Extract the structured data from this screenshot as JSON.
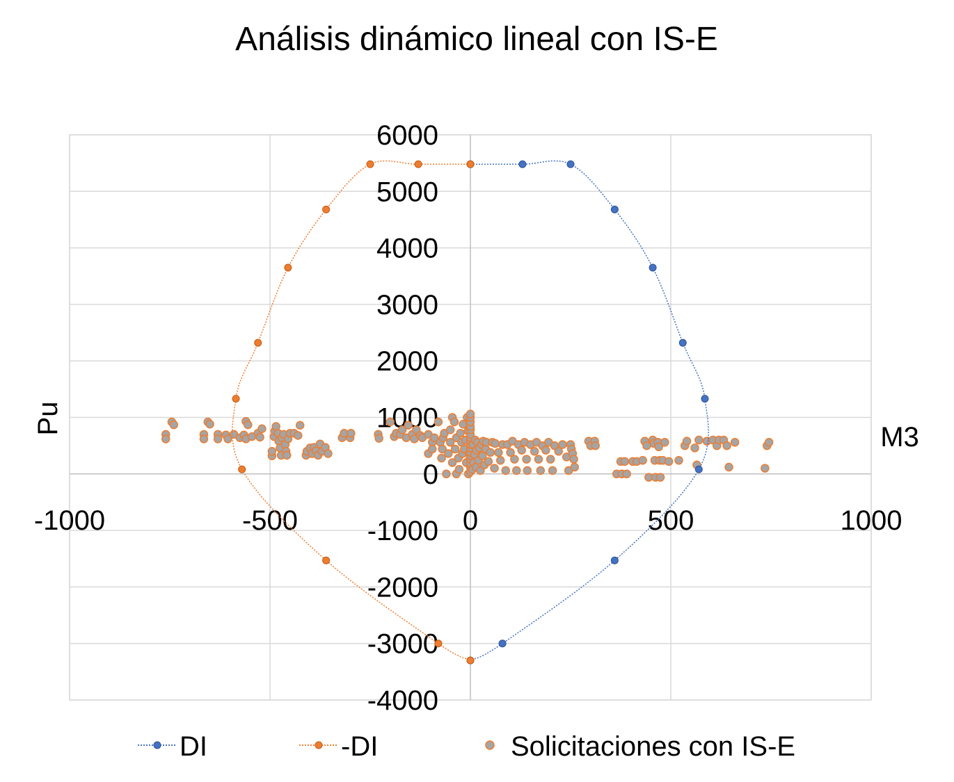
{
  "chart_data": {
    "type": "scatter",
    "title": "Análisis dinámico lineal con IS-E",
    "xlabel": "M3",
    "ylabel": "Pu",
    "xlim": [
      -1000,
      1000
    ],
    "ylim": [
      -4000,
      6000
    ],
    "x_ticks": [
      "-1000",
      "-500",
      "0",
      "500",
      "1000"
    ],
    "y_ticks": [
      "-4000",
      "-3000",
      "-2000",
      "-1000",
      "0",
      "1000",
      "2000",
      "3000",
      "4000",
      "5000",
      "6000"
    ],
    "grid": "on",
    "legend": "bottom",
    "series": [
      {
        "name": "DI",
        "kind": "line-markers",
        "color": "#4472C4",
        "points": [
          [
            0,
            5480
          ],
          [
            130,
            5480
          ],
          [
            250,
            5480
          ],
          [
            360,
            4680
          ],
          [
            455,
            3650
          ],
          [
            530,
            2320
          ],
          [
            585,
            1330
          ],
          [
            570,
            80
          ],
          [
            360,
            -1530
          ],
          [
            80,
            -3000
          ],
          [
            0,
            -3300
          ]
        ]
      },
      {
        "name": "-DI",
        "kind": "line-markers",
        "color": "#ED7D31",
        "points": [
          [
            0,
            5480
          ],
          [
            -130,
            5480
          ],
          [
            -250,
            5480
          ],
          [
            -360,
            4680
          ],
          [
            -455,
            3650
          ],
          [
            -530,
            2320
          ],
          [
            -585,
            1330
          ],
          [
            -570,
            80
          ],
          [
            -360,
            -1530
          ],
          [
            -80,
            -3000
          ],
          [
            0,
            -3300
          ]
        ]
      },
      {
        "name": "Solicitaciones con IS-E",
        "kind": "markers",
        "color": "#A5A5A5",
        "edge_color": "#ED7D31",
        "points": [
          [
            -760,
            700
          ],
          [
            -760,
            620
          ],
          [
            -745,
            920
          ],
          [
            -740,
            870
          ],
          [
            -665,
            700
          ],
          [
            -665,
            620
          ],
          [
            -655,
            920
          ],
          [
            -650,
            880
          ],
          [
            -630,
            700
          ],
          [
            -630,
            620
          ],
          [
            -610,
            690
          ],
          [
            -605,
            620
          ],
          [
            -590,
            700
          ],
          [
            -575,
            640
          ],
          [
            -565,
            690
          ],
          [
            -560,
            620
          ],
          [
            -560,
            930
          ],
          [
            -555,
            870
          ],
          [
            -545,
            660
          ],
          [
            -530,
            720
          ],
          [
            -525,
            650
          ],
          [
            -520,
            800
          ],
          [
            -495,
            320
          ],
          [
            -495,
            400
          ],
          [
            -490,
            660
          ],
          [
            -488,
            760
          ],
          [
            -485,
            840
          ],
          [
            -480,
            720
          ],
          [
            -478,
            580
          ],
          [
            -475,
            460
          ],
          [
            -472,
            330
          ],
          [
            -470,
            640
          ],
          [
            -466,
            700
          ],
          [
            -462,
            520
          ],
          [
            -460,
            400
          ],
          [
            -458,
            330
          ],
          [
            -455,
            620
          ],
          [
            -450,
            720
          ],
          [
            -440,
            720
          ],
          [
            -430,
            680
          ],
          [
            -425,
            860
          ],
          [
            -410,
            330
          ],
          [
            -408,
            400
          ],
          [
            -400,
            460
          ],
          [
            -395,
            360
          ],
          [
            -390,
            470
          ],
          [
            -385,
            410
          ],
          [
            -380,
            330
          ],
          [
            -375,
            530
          ],
          [
            -370,
            400
          ],
          [
            -362,
            470
          ],
          [
            -355,
            360
          ],
          [
            -320,
            640
          ],
          [
            -315,
            720
          ],
          [
            -300,
            640
          ],
          [
            -298,
            720
          ],
          [
            -230,
            700
          ],
          [
            -228,
            630
          ],
          [
            -200,
            920
          ],
          [
            -190,
            660
          ],
          [
            -185,
            720
          ],
          [
            -175,
            700
          ],
          [
            -170,
            780
          ],
          [
            -160,
            640
          ],
          [
            -155,
            860
          ],
          [
            -145,
            700
          ],
          [
            -140,
            620
          ],
          [
            -135,
            780
          ],
          [
            -125,
            680
          ],
          [
            -120,
            640
          ],
          [
            -105,
            360
          ],
          [
            -105,
            700
          ],
          [
            -95,
            560
          ],
          [
            -95,
            440
          ],
          [
            -90,
            640
          ],
          [
            -80,
            920
          ],
          [
            -75,
            560
          ],
          [
            -72,
            280
          ],
          [
            -70,
            440
          ],
          [
            -68,
            640
          ],
          [
            -65,
            720
          ],
          [
            -60,
            0
          ],
          [
            -55,
            360
          ],
          [
            -50,
            560
          ],
          [
            -50,
            780
          ],
          [
            -45,
            200
          ],
          [
            -45,
            1000
          ],
          [
            -40,
            920
          ],
          [
            -38,
            440
          ],
          [
            -35,
            640
          ],
          [
            -35,
            0
          ],
          [
            -30,
            280
          ],
          [
            -28,
            80
          ],
          [
            -25,
            720
          ],
          [
            -22,
            560
          ],
          [
            -20,
            360
          ],
          [
            -18,
            880
          ],
          [
            -15,
            440
          ],
          [
            -12,
            600
          ],
          [
            -10,
            200
          ],
          [
            -8,
            1000
          ],
          [
            -6,
            760
          ],
          [
            -5,
            0
          ],
          [
            -3,
            360
          ],
          [
            -2,
            920
          ],
          [
            -1,
            280
          ],
          [
            0,
            40
          ],
          [
            0,
            120
          ],
          [
            0,
            180
          ],
          [
            0,
            260
          ],
          [
            0,
            320
          ],
          [
            0,
            380
          ],
          [
            0,
            460
          ],
          [
            0,
            520
          ],
          [
            0,
            580
          ],
          [
            0,
            640
          ],
          [
            0,
            700
          ],
          [
            0,
            780
          ],
          [
            0,
            840
          ],
          [
            0,
            920
          ],
          [
            0,
            1000
          ],
          [
            0,
            1060
          ],
          [
            5,
            80
          ],
          [
            6,
            520
          ],
          [
            8,
            200
          ],
          [
            10,
            340
          ],
          [
            12,
            600
          ],
          [
            14,
            120
          ],
          [
            15,
            420
          ],
          [
            18,
            560
          ],
          [
            20,
            240
          ],
          [
            22,
            460
          ],
          [
            25,
            60
          ],
          [
            28,
            520
          ],
          [
            30,
            320
          ],
          [
            32,
            580
          ],
          [
            35,
            160
          ],
          [
            38,
            440
          ],
          [
            40,
            560
          ],
          [
            45,
            220
          ],
          [
            50,
            380
          ],
          [
            55,
            560
          ],
          [
            60,
            100
          ],
          [
            62,
            540
          ],
          [
            70,
            380
          ],
          [
            75,
            240
          ],
          [
            80,
            520
          ],
          [
            88,
            60
          ],
          [
            92,
            520
          ],
          [
            100,
            380
          ],
          [
            105,
            580
          ],
          [
            110,
            260
          ],
          [
            115,
            60
          ],
          [
            120,
            520
          ],
          [
            128,
            420
          ],
          [
            135,
            560
          ],
          [
            140,
            260
          ],
          [
            142,
            60
          ],
          [
            150,
            520
          ],
          [
            160,
            400
          ],
          [
            165,
            560
          ],
          [
            170,
            260
          ],
          [
            175,
            60
          ],
          [
            180,
            500
          ],
          [
            188,
            420
          ],
          [
            195,
            560
          ],
          [
            200,
            260
          ],
          [
            205,
            60
          ],
          [
            210,
            500
          ],
          [
            220,
            400
          ],
          [
            230,
            520
          ],
          [
            240,
            300
          ],
          [
            245,
            60
          ],
          [
            250,
            520
          ],
          [
            252,
            440
          ],
          [
            255,
            360
          ],
          [
            258,
            260
          ],
          [
            260,
            120
          ],
          [
            295,
            580
          ],
          [
            300,
            500
          ],
          [
            310,
            580
          ],
          [
            312,
            500
          ],
          [
            365,
            0
          ],
          [
            378,
            0
          ],
          [
            390,
            0
          ],
          [
            375,
            220
          ],
          [
            385,
            220
          ],
          [
            405,
            220
          ],
          [
            415,
            220
          ],
          [
            430,
            240
          ],
          [
            435,
            580
          ],
          [
            440,
            500
          ],
          [
            445,
            -60
          ],
          [
            455,
            600
          ],
          [
            458,
            540
          ],
          [
            460,
            240
          ],
          [
            462,
            -60
          ],
          [
            468,
            560
          ],
          [
            470,
            480
          ],
          [
            472,
            240
          ],
          [
            474,
            -60
          ],
          [
            480,
            240
          ],
          [
            485,
            560
          ],
          [
            495,
            220
          ],
          [
            520,
            240
          ],
          [
            535,
            500
          ],
          [
            540,
            580
          ],
          [
            560,
            460
          ],
          [
            565,
            160
          ],
          [
            570,
            600
          ],
          [
            590,
            580
          ],
          [
            605,
            600
          ],
          [
            615,
            500
          ],
          [
            620,
            600
          ],
          [
            632,
            600
          ],
          [
            640,
            500
          ],
          [
            645,
            120
          ],
          [
            660,
            560
          ],
          [
            735,
            100
          ],
          [
            740,
            500
          ],
          [
            745,
            560
          ]
        ]
      }
    ]
  }
}
